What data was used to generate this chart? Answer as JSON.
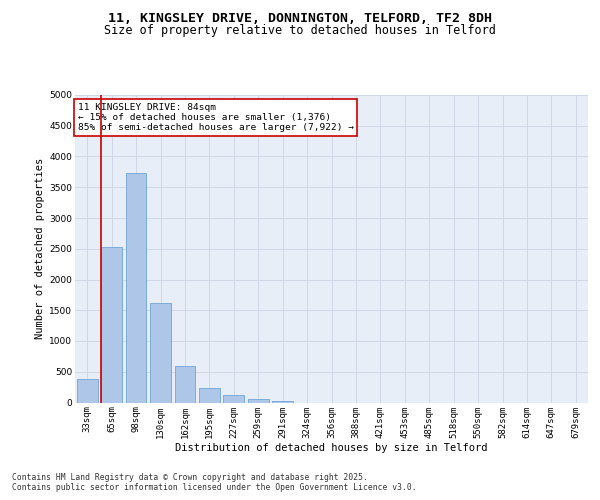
{
  "title_line1": "11, KINGSLEY DRIVE, DONNINGTON, TELFORD, TF2 8DH",
  "title_line2": "Size of property relative to detached houses in Telford",
  "xlabel": "Distribution of detached houses by size in Telford",
  "ylabel": "Number of detached properties",
  "categories": [
    "33sqm",
    "65sqm",
    "98sqm",
    "130sqm",
    "162sqm",
    "195sqm",
    "227sqm",
    "259sqm",
    "291sqm",
    "324sqm",
    "356sqm",
    "388sqm",
    "421sqm",
    "453sqm",
    "485sqm",
    "518sqm",
    "550sqm",
    "582sqm",
    "614sqm",
    "647sqm",
    "679sqm"
  ],
  "values": [
    380,
    2530,
    3730,
    1610,
    600,
    230,
    130,
    60,
    30,
    0,
    0,
    0,
    0,
    0,
    0,
    0,
    0,
    0,
    0,
    0,
    0
  ],
  "bar_color": "#aec6e8",
  "bar_edge_color": "#5b9bd5",
  "grid_color": "#d0d8e8",
  "bg_color": "#e8eef7",
  "vline_x_index": 1,
  "vline_color": "#cc0000",
  "annotation_title": "11 KINGSLEY DRIVE: 84sqm",
  "annotation_line1": "← 15% of detached houses are smaller (1,376)",
  "annotation_line2": "85% of semi-detached houses are larger (7,922) →",
  "annotation_box_color": "#cc0000",
  "ylim": [
    0,
    5000
  ],
  "yticks": [
    0,
    500,
    1000,
    1500,
    2000,
    2500,
    3000,
    3500,
    4000,
    4500,
    5000
  ],
  "footer_line1": "Contains HM Land Registry data © Crown copyright and database right 2025.",
  "footer_line2": "Contains public sector information licensed under the Open Government Licence v3.0.",
  "title_fontsize": 9.5,
  "subtitle_fontsize": 8.5,
  "axis_label_fontsize": 7.5,
  "tick_fontsize": 6.5,
  "annotation_fontsize": 6.8,
  "footer_fontsize": 5.8
}
